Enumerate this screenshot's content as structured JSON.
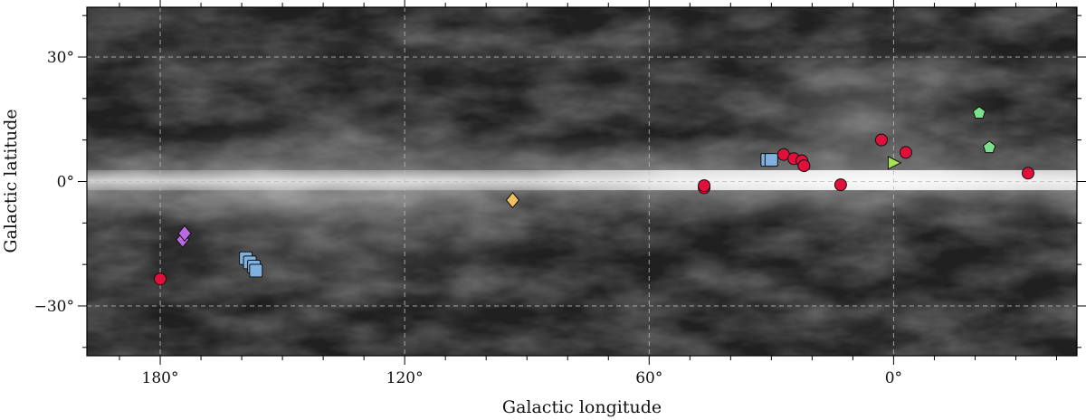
{
  "chart_data": {
    "type": "scatter",
    "title": "",
    "xlabel": "Galactic longitude",
    "ylabel": "Galactic latitude",
    "xlim": [
      198,
      -45
    ],
    "ylim": [
      -42,
      42
    ],
    "x_ticks": [
      180,
      120,
      60,
      0
    ],
    "x_tick_labels": [
      "180°",
      "120°",
      "60°",
      "0°"
    ],
    "y_ticks": [
      30,
      0,
      -30
    ],
    "y_tick_labels": [
      "30°",
      "0°",
      "−30°"
    ],
    "x_minor_step": 10,
    "y_minor_step": 10,
    "grid": true,
    "background": "grayscale all-sky dust emission map, bright band along latitude 0",
    "series": [
      {
        "marker": "circle",
        "color": "#e0103a",
        "points": [
          {
            "x": 180,
            "y": -23.5
          },
          {
            "x": 46.5,
            "y": -1.5
          },
          {
            "x": 46.5,
            "y": -1.0
          },
          {
            "x": 27,
            "y": 6.5
          },
          {
            "x": 24.5,
            "y": 5.5
          },
          {
            "x": 22.5,
            "y": 5.0
          },
          {
            "x": 22,
            "y": 3.8
          },
          {
            "x": 13,
            "y": -0.8
          },
          {
            "x": 3,
            "y": 10.0
          },
          {
            "x": -3,
            "y": 7.0
          },
          {
            "x": -33,
            "y": 2.0
          }
        ]
      },
      {
        "marker": "diamond",
        "color": "#b96adf",
        "points": [
          {
            "x": 174.5,
            "y": -14
          },
          {
            "x": 174,
            "y": -12.5
          }
        ]
      },
      {
        "marker": "square",
        "color": "#7fb0de",
        "points": [
          {
            "x": 159,
            "y": -18.5
          },
          {
            "x": 158,
            "y": -19.5
          },
          {
            "x": 157,
            "y": -20.5
          },
          {
            "x": 156.5,
            "y": -21.5
          },
          {
            "x": 31,
            "y": 5.2
          },
          {
            "x": 30,
            "y": 5.2
          }
        ]
      },
      {
        "marker": "diamond",
        "color": "#f0c060",
        "points": [
          {
            "x": 93.5,
            "y": -4.5
          }
        ]
      },
      {
        "marker": "triangle-right",
        "color": "#a6e054",
        "points": [
          {
            "x": 0,
            "y": 4.5
          }
        ]
      },
      {
        "marker": "pentagon",
        "color": "#7de08e",
        "points": [
          {
            "x": -21,
            "y": 16.5
          },
          {
            "x": -23.5,
            "y": 8.2
          }
        ]
      }
    ]
  }
}
